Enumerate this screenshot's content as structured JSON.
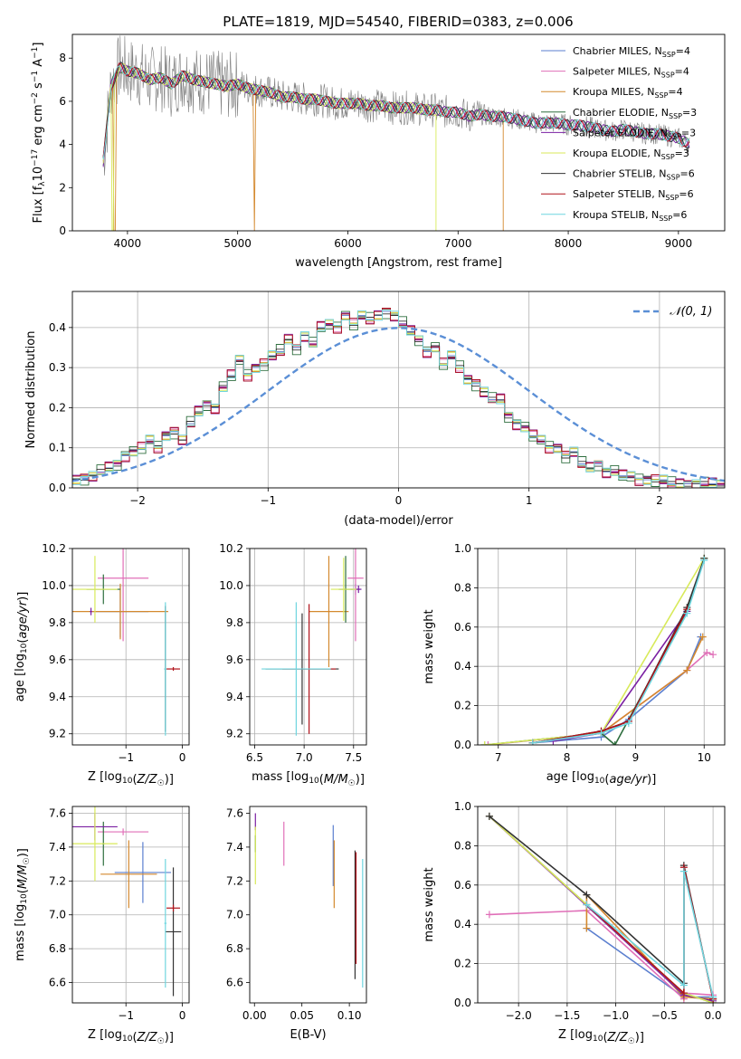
{
  "figure_title": "PLATE=1819, MJD=54540, FIBERID=0383, z=0.006",
  "colors": {
    "Chabrier MILES": "#5b7fcf",
    "Salpeter MILES": "#e06fb8",
    "Kroupa MILES": "#d4892e",
    "Chabrier ELODIE": "#2e6e3e",
    "Salpeter ELODIE": "#7a1fa2",
    "Kroupa ELODIE": "#d8ea5a",
    "Chabrier STELIB": "#333333",
    "Salpeter STELIB": "#b0121a",
    "Kroupa STELIB": "#6fd6df",
    "data": "#7f7f7f",
    "normal": "#5b8fd6"
  },
  "chart_data": [
    {
      "id": "spectrum",
      "type": "line",
      "title": "PLATE=1819, MJD=54540, FIBERID=0383, z=0.006",
      "xlabel": "wavelength [Angstrom, rest frame]",
      "ylabel": "Flux [f_λ 10^-17 erg cm^-2 s^-1 A^-1]",
      "xlim": [
        3500,
        9420
      ],
      "ylim": [
        0,
        9.1
      ],
      "xticks": [
        4000,
        5000,
        6000,
        7000,
        8000,
        9000
      ],
      "yticks": [
        0,
        2,
        4,
        6,
        8
      ],
      "legend": {
        "placement": "top-right",
        "entries": [
          {
            "name": "Chabrier MILES",
            "nssp": "4"
          },
          {
            "name": "Salpeter MILES",
            "nssp": "4"
          },
          {
            "name": "Kroupa MILES",
            "nssp": "4"
          },
          {
            "name": "Chabrier ELODIE",
            "nssp": "3"
          },
          {
            "name": "Salpeter ELODIE",
            "nssp": "3"
          },
          {
            "name": "Kroupa ELODIE",
            "nssp": "3"
          },
          {
            "name": "Chabrier STELIB",
            "nssp": "6"
          },
          {
            "name": "Salpeter STELIB",
            "nssp": "6"
          },
          {
            "name": "Kroupa STELIB",
            "nssp": "6"
          }
        ]
      },
      "data_x": [
        3780,
        3850,
        3930,
        4000,
        4100,
        4200,
        4300,
        4400,
        4500,
        4600,
        4700,
        4800,
        4900,
        5000,
        5100,
        5200,
        5300,
        5400,
        5500,
        5600,
        5700,
        5800,
        5900,
        6000,
        6100,
        6200,
        6300,
        6400,
        6500,
        6600,
        6700,
        6800,
        6900,
        7000,
        7100,
        7200,
        7300,
        7400,
        7500,
        7600,
        7700,
        7800,
        7900,
        8000,
        8100,
        8200,
        8300,
        8400,
        8500,
        8600,
        8700,
        8800,
        8900,
        9000,
        9100
      ],
      "data_y": [
        3.2,
        6.7,
        7.6,
        7.4,
        7.3,
        7.0,
        7.1,
        6.8,
        7.2,
        7.0,
        6.9,
        6.8,
        6.7,
        6.8,
        6.6,
        6.5,
        6.4,
        6.2,
        6.2,
        6.1,
        6.1,
        6.0,
        5.9,
        5.9,
        5.9,
        5.8,
        5.8,
        5.7,
        5.7,
        5.7,
        5.6,
        5.6,
        5.5,
        5.5,
        5.3,
        5.4,
        5.3,
        5.3,
        5.2,
        5.1,
        5.0,
        5.0,
        5.0,
        4.9,
        4.9,
        4.8,
        4.7,
        4.6,
        4.7,
        4.6,
        4.5,
        4.5,
        4.4,
        4.3,
        4.0
      ],
      "model_drops": [
        {
          "name": "Kroupa MILES",
          "cutoff": 7410,
          "gap": [
            5140,
            5160
          ],
          "gap2": [
            3870,
            3890
          ]
        },
        {
          "name": "Kroupa ELODIE",
          "cutoff": 6800,
          "gap": [
            3860,
            3880
          ]
        }
      ]
    },
    {
      "id": "residuals",
      "type": "histogram",
      "xlabel": "(data-model)/error",
      "ylabel": "Normed distribution",
      "xlim": [
        -2.5,
        2.5
      ],
      "ylim": [
        0,
        0.49
      ],
      "xticks": [
        -2,
        -1,
        0,
        1,
        2
      ],
      "yticks": [
        0.0,
        0.1,
        0.2,
        0.3,
        0.4
      ],
      "legend": {
        "placement": "top-right",
        "label": "𝒩(0, 1)"
      },
      "bin_width": 0.1,
      "bins_start": -2.5,
      "values": [
        0.02,
        0.025,
        0.03,
        0.04,
        0.05,
        0.06,
        0.08,
        0.09,
        0.1,
        0.12,
        0.1,
        0.13,
        0.14,
        0.12,
        0.16,
        0.19,
        0.21,
        0.2,
        0.25,
        0.28,
        0.32,
        0.28,
        0.3,
        0.31,
        0.33,
        0.34,
        0.37,
        0.35,
        0.38,
        0.36,
        0.4,
        0.41,
        0.4,
        0.43,
        0.41,
        0.43,
        0.42,
        0.43,
        0.44,
        0.43,
        0.41,
        0.39,
        0.37,
        0.34,
        0.35,
        0.31,
        0.33,
        0.3,
        0.27,
        0.26,
        0.24,
        0.22,
        0.22,
        0.18,
        0.16,
        0.15,
        0.13,
        0.12,
        0.1,
        0.1,
        0.08,
        0.09,
        0.06,
        0.05,
        0.06,
        0.04,
        0.04,
        0.03,
        0.03,
        0.02,
        0.02,
        0.02,
        0.02,
        0.01,
        0.01,
        0.01,
        0.01,
        0.01,
        0.01,
        0.01
      ],
      "model_offsets": [
        0.0,
        0.012,
        -0.01,
        0.018,
        -0.015,
        0.008,
        -0.006,
        0.014,
        -0.012
      ]
    },
    {
      "id": "age-vs-z",
      "type": "errorbar",
      "xlabel": "Z [log10(Z/Z☉)]",
      "ylabel": "age  [log10(age/yr)]",
      "xlim": [
        -1.95,
        0.12
      ],
      "ylim": [
        9.14,
        10.2
      ],
      "xticks": [
        -1,
        0
      ],
      "yticks": [
        9.2,
        9.4,
        9.6,
        9.8,
        10.0,
        10.2
      ],
      "points": [
        {
          "name": "Chabrier MILES",
          "x": -1.1,
          "xerr": 0.5,
          "y": 9.86,
          "yerr": 0.14
        },
        {
          "name": "Salpeter MILES",
          "x": -1.05,
          "xerr": 0.45,
          "y": 10.04,
          "yerr": 0.34
        },
        {
          "name": "Kroupa MILES",
          "x": -1.1,
          "xerr": 0.85,
          "y": 9.86,
          "yerr": 0.15
        },
        {
          "name": "Chabrier ELODIE",
          "x": -1.4,
          "xerr": 0.3,
          "y": 9.98,
          "yerr": 0.08
        },
        {
          "name": "Salpeter ELODIE",
          "x": -1.62,
          "xerr": 0.02,
          "y": 9.86,
          "yerr": 0.02
        },
        {
          "name": "Kroupa ELODIE",
          "x": -1.55,
          "xerr": 0.4,
          "y": 9.98,
          "yerr": 0.18
        },
        {
          "name": "Chabrier STELIB",
          "x": -0.3,
          "xerr": 0.02,
          "y": 9.55,
          "yerr": 0.34
        },
        {
          "name": "Salpeter STELIB",
          "x": -0.16,
          "xerr": 0.12,
          "y": 9.55,
          "yerr": 0.01
        },
        {
          "name": "Kroupa STELIB",
          "x": -0.3,
          "xerr": 0.02,
          "y": 9.55,
          "yerr": 0.36
        }
      ]
    },
    {
      "id": "age-vs-mass",
      "type": "errorbar",
      "xlabel": "mass [log10(M/M☉)]",
      "ylabel": "",
      "xlim": [
        6.45,
        7.63
      ],
      "ylim": [
        9.14,
        10.2
      ],
      "xticks": [
        6.5,
        7.0,
        7.5
      ],
      "yticks": [
        9.2,
        9.4,
        9.6,
        9.8,
        10.0,
        10.2
      ],
      "points": [
        {
          "name": "Chabrier MILES",
          "x": 7.52,
          "xerr": 0.05,
          "y": 9.98,
          "yerr": 0.03
        },
        {
          "name": "Salpeter MILES",
          "x": 7.52,
          "xerr": 0.08,
          "y": 10.04,
          "yerr": 0.34
        },
        {
          "name": "Kroupa MILES",
          "x": 7.25,
          "xerr": 0.2,
          "y": 9.86,
          "yerr": 0.3
        },
        {
          "name": "Chabrier ELODIE",
          "x": 7.42,
          "xerr": 0.07,
          "y": 9.98,
          "yerr": 0.18
        },
        {
          "name": "Salpeter ELODIE",
          "x": 7.55,
          "xerr": 0.03,
          "y": 9.98,
          "yerr": 0.02
        },
        {
          "name": "Kroupa ELODIE",
          "x": 7.4,
          "xerr": 0.13,
          "y": 9.98,
          "yerr": 0.17
        },
        {
          "name": "Chabrier STELIB",
          "x": 6.98,
          "xerr": 0.37,
          "y": 9.55,
          "yerr": 0.3
        },
        {
          "name": "Salpeter STELIB",
          "x": 7.05,
          "xerr": 0.27,
          "y": 9.55,
          "yerr": 0.35
        },
        {
          "name": "Kroupa STELIB",
          "x": 6.92,
          "xerr": 0.35,
          "y": 9.55,
          "yerr": 0.36
        }
      ]
    },
    {
      "id": "weight-vs-age",
      "type": "line",
      "xlabel": "age  [log10(age/yr)]",
      "ylabel": "mass weight",
      "xlim": [
        6.7,
        10.3
      ],
      "ylim": [
        0,
        1.0
      ],
      "xticks": [
        7,
        8,
        9,
        10
      ],
      "yticks": [
        0.0,
        0.2,
        0.4,
        0.6,
        0.8,
        1.0
      ],
      "series": [
        {
          "name": "Chabrier MILES",
          "x": [
            7.5,
            8.5,
            8.9,
            9.75,
            9.95
          ],
          "y": [
            0.01,
            0.04,
            0.13,
            0.38,
            0.55
          ]
        },
        {
          "name": "Salpeter MILES",
          "x": [
            6.85,
            8.5,
            9.75,
            10.04,
            10.13
          ],
          "y": [
            0.0,
            0.06,
            0.38,
            0.47,
            0.46
          ]
        },
        {
          "name": "Kroupa MILES",
          "x": [
            7.5,
            8.5,
            9.75,
            9.98
          ],
          "y": [
            0.01,
            0.06,
            0.38,
            0.55
          ]
        },
        {
          "name": "Chabrier ELODIE",
          "x": [
            6.8,
            8.5,
            8.7,
            9.75,
            10.0
          ],
          "y": [
            0.0,
            0.06,
            0.0,
            0.68,
            0.95
          ]
        },
        {
          "name": "Salpeter ELODIE",
          "x": [
            7.8,
            8.5,
            9.75
          ],
          "y": [
            0.02,
            0.06,
            0.68
          ]
        },
        {
          "name": "Kroupa ELODIE",
          "x": [
            6.8,
            8.5,
            10.0
          ],
          "y": [
            0.0,
            0.06,
            0.95
          ]
        },
        {
          "name": "Chabrier STELIB",
          "x": [
            7.5,
            8.5,
            8.9,
            9.75,
            10.0
          ],
          "y": [
            0.01,
            0.07,
            0.12,
            0.7,
            0.95
          ]
        },
        {
          "name": "Salpeter STELIB",
          "x": [
            7.5,
            8.5,
            8.9,
            9.75
          ],
          "y": [
            0.01,
            0.07,
            0.12,
            0.69
          ]
        },
        {
          "name": "Kroupa STELIB",
          "x": [
            7.5,
            8.5,
            8.9,
            9.75,
            10.0
          ],
          "y": [
            0.01,
            0.06,
            0.11,
            0.67,
            0.94
          ]
        }
      ]
    },
    {
      "id": "mass-vs-z",
      "type": "errorbar",
      "xlabel": "Z [log10(Z/Z☉)]",
      "ylabel": "mass [log10(M/M☉)]",
      "xlim": [
        -1.95,
        0.12
      ],
      "ylim": [
        6.48,
        7.64
      ],
      "xticks": [
        -1,
        0
      ],
      "yticks": [
        6.6,
        6.8,
        7.0,
        7.2,
        7.4,
        7.6
      ],
      "points": [
        {
          "name": "Chabrier MILES",
          "x": -0.7,
          "xerr": 0.5,
          "y": 7.25,
          "yerr": 0.18
        },
        {
          "name": "Salpeter MILES",
          "x": -1.05,
          "xerr": 0.45,
          "y": 7.49,
          "yerr": 0.02
        },
        {
          "name": "Kroupa MILES",
          "x": -0.95,
          "xerr": 0.5,
          "y": 7.24,
          "yerr": 0.2
        },
        {
          "name": "Chabrier ELODIE",
          "x": -1.4,
          "xerr": 0.02,
          "y": 7.42,
          "yerr": 0.13
        },
        {
          "name": "Salpeter ELODIE",
          "x": -1.55,
          "xerr": 0.4,
          "y": 7.52,
          "yerr": 0.08
        },
        {
          "name": "Kroupa ELODIE",
          "x": -1.55,
          "xerr": 0.4,
          "y": 7.42,
          "yerr": 0.22
        },
        {
          "name": "Chabrier STELIB",
          "x": -0.16,
          "xerr": 0.14,
          "y": 6.9,
          "yerr": 0.38
        },
        {
          "name": "Salpeter STELIB",
          "x": -0.16,
          "xerr": 0.12,
          "y": 7.04,
          "yerr": 0.02
        },
        {
          "name": "Kroupa STELIB",
          "x": -0.3,
          "xerr": 0.02,
          "y": 6.95,
          "yerr": 0.38
        }
      ]
    },
    {
      "id": "mass-vs-ebv",
      "type": "errorbar",
      "xlabel": "E(B-V)",
      "ylabel": "",
      "xlim": [
        -0.005,
        0.118
      ],
      "ylim": [
        6.48,
        7.64
      ],
      "xticks": [
        0.0,
        0.05,
        0.1
      ],
      "ytick_labels_as": "0.00,0.05,0.10",
      "yticks": [
        6.6,
        6.8,
        7.0,
        7.2,
        7.4,
        7.6
      ],
      "points": [
        {
          "name": "Chabrier MILES",
          "x": 0.083,
          "xerr": 0,
          "y": 7.35,
          "yerr": 0.18
        },
        {
          "name": "Salpeter MILES",
          "x": 0.031,
          "xerr": 0,
          "y": 7.42,
          "yerr": 0.13
        },
        {
          "name": "Kroupa MILES",
          "x": 0.084,
          "xerr": 0,
          "y": 7.24,
          "yerr": 0.2
        },
        {
          "name": "Chabrier ELODIE",
          "x": 0.001,
          "xerr": 0,
          "y": 7.42,
          "yerr": 0.05
        },
        {
          "name": "Salpeter ELODIE",
          "x": 0.001,
          "xerr": 0,
          "y": 7.55,
          "yerr": 0.05
        },
        {
          "name": "Kroupa ELODIE",
          "x": 0.001,
          "xerr": 0,
          "y": 7.35,
          "yerr": 0.17
        },
        {
          "name": "Chabrier STELIB",
          "x": 0.106,
          "xerr": 0,
          "y": 7.0,
          "yerr": 0.38
        },
        {
          "name": "Salpeter STELIB",
          "x": 0.107,
          "xerr": 0,
          "y": 7.04,
          "yerr": 0.33
        },
        {
          "name": "Kroupa STELIB",
          "x": 0.114,
          "xerr": 0,
          "y": 6.95,
          "yerr": 0.38
        }
      ]
    },
    {
      "id": "weight-vs-z",
      "type": "line",
      "xlabel": "Z [log10(Z/Z☉)]",
      "ylabel": "mass weight",
      "xlim": [
        -2.42,
        0.12
      ],
      "ylim": [
        0,
        1.0
      ],
      "xticks": [
        -2.0,
        -1.5,
        -1.0,
        -0.5,
        0.0
      ],
      "yticks": [
        0.0,
        0.2,
        0.4,
        0.6,
        0.8,
        1.0
      ],
      "series": [
        {
          "name": "Chabrier MILES",
          "x": [
            -1.3,
            -0.3,
            0.0
          ],
          "y": [
            0.38,
            0.03,
            0.03
          ]
        },
        {
          "name": "Salpeter MILES",
          "x": [
            -2.3,
            -1.3,
            -0.3,
            -0.3,
            0.0
          ],
          "y": [
            0.45,
            0.47,
            0.02,
            0.05,
            0.04
          ]
        },
        {
          "name": "Kroupa MILES",
          "x": [
            -1.3,
            -1.3,
            -0.3,
            0.0
          ],
          "y": [
            0.38,
            0.55,
            0.03,
            0.02
          ]
        },
        {
          "name": "Chabrier ELODIE",
          "x": [
            -2.3,
            -0.3,
            0.0
          ],
          "y": [
            0.95,
            0.05,
            0.0
          ]
        },
        {
          "name": "Salpeter ELODIE",
          "x": [
            -2.3,
            -0.3,
            0.0
          ],
          "y": [
            0.95,
            0.04,
            0.01
          ]
        },
        {
          "name": "Kroupa ELODIE",
          "x": [
            -2.3,
            -0.3,
            0.0
          ],
          "y": [
            0.95,
            0.05,
            0.0
          ]
        },
        {
          "name": "Chabrier STELIB",
          "x": [
            -2.3,
            -1.3,
            -0.3,
            -0.3,
            0.0
          ],
          "y": [
            0.95,
            0.55,
            0.1,
            0.7,
            0.02
          ]
        },
        {
          "name": "Salpeter STELIB",
          "x": [
            -1.3,
            -0.3,
            -0.3,
            0.0
          ],
          "y": [
            0.5,
            0.05,
            0.69,
            0.02
          ]
        },
        {
          "name": "Kroupa STELIB",
          "x": [
            -1.3,
            -0.3,
            -0.3,
            0.0
          ],
          "y": [
            0.5,
            0.09,
            0.67,
            0.03
          ]
        }
      ]
    }
  ]
}
